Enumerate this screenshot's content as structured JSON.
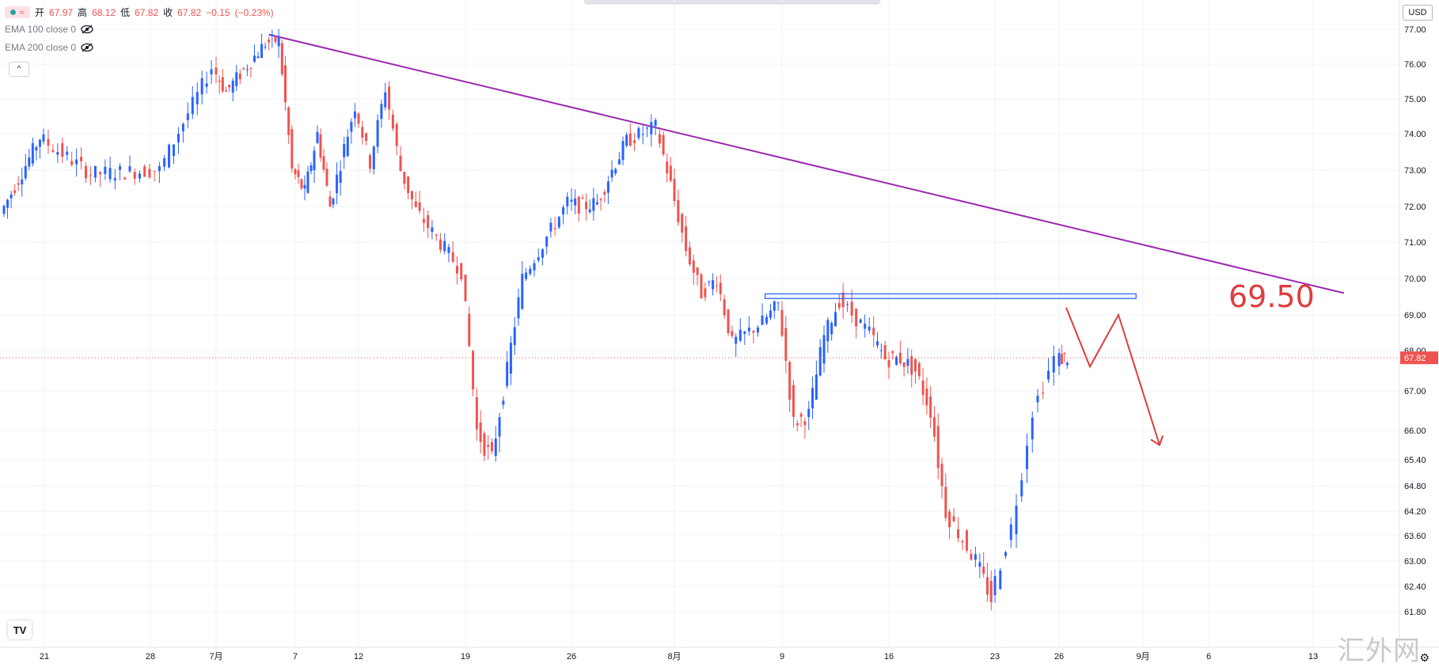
{
  "legend": {
    "ohlc": {
      "open_label": "开",
      "open": "67.97",
      "high_label": "高",
      "high": "68.12",
      "low_label": "低",
      "low": "67.82",
      "close_label": "收",
      "close": "67.82",
      "change": "−0.15",
      "change_pct": "(−0.23%)"
    },
    "indicators": [
      {
        "label": "EMA 100 close 0"
      },
      {
        "label": "EMA 200 close 0"
      }
    ],
    "badge_symbol": "≈",
    "collapse_symbol": "^"
  },
  "currency_button": "USD",
  "watermark": "汇外网",
  "annotation_label": "69.50",
  "colors": {
    "up": "#2962ff",
    "down": "#ef5350",
    "trendline": "#9c27b0",
    "zone": "#2962ff",
    "arrow": "#e03c3c",
    "price_tag": "#ef5350",
    "grid": "#f0f3fa"
  },
  "chart_data": {
    "type": "candlestick",
    "title": "",
    "ylim": [
      61.5,
      77.2
    ],
    "y_ticks": [
      "77.00",
      "76.00",
      "75.00",
      "74.00",
      "73.00",
      "72.00",
      "71.00",
      "70.00",
      "69.00",
      "68.00",
      "67.00",
      "66.00",
      "65.40",
      "64.80",
      "64.20",
      "63.60",
      "63.00",
      "62.40",
      "61.80"
    ],
    "x_tick_labels": [
      "21",
      "28",
      "7月",
      "7",
      "12",
      "19",
      "26",
      "8月",
      "9",
      "16",
      "23",
      "26",
      "9月",
      "6",
      "13"
    ],
    "last_price": "67.82",
    "resistance_zone": [
      69.45,
      69.58
    ],
    "resistance_label": "69.50",
    "trendline": {
      "start": {
        "date": "7月5",
        "price": 76.85
      },
      "end": {
        "date": "9月15",
        "price": 69.6
      }
    },
    "projection_path": [
      [
        68.5,
        67.0
      ],
      [
        67.5,
        68.1
      ],
      [
        65.6,
        65.7
      ]
    ],
    "anchors": [
      [
        "6月18",
        71.8
      ],
      [
        "6月21",
        73.9
      ],
      [
        "6月24",
        72.9
      ],
      [
        "6月28",
        73.0
      ],
      [
        "7月1",
        75.9
      ],
      [
        "7月2",
        75.2
      ],
      [
        "7月5",
        76.6
      ],
      [
        "7月6",
        76.7
      ],
      [
        "7月7",
        73.0
      ],
      [
        "7月8",
        72.4
      ],
      [
        "7月9",
        74.0
      ],
      [
        "7月10",
        72.0
      ],
      [
        "7月12",
        74.8
      ],
      [
        "7月13",
        73.2
      ],
      [
        "7月14",
        75.3
      ],
      [
        "7月15",
        73.0
      ],
      [
        "7月16",
        71.9
      ],
      [
        "7月19",
        70.2
      ],
      [
        "7月20",
        66.0
      ],
      [
        "7月21",
        65.4
      ],
      [
        "7月22",
        67.5
      ],
      [
        "7月23",
        70.0
      ],
      [
        "7月26",
        72.1
      ],
      [
        "7月27",
        72.0
      ],
      [
        "7月28",
        72.1
      ],
      [
        "7月29",
        73.0
      ],
      [
        "7月30",
        73.8
      ],
      [
        "8月1",
        74.2
      ],
      [
        "8月2",
        72.6
      ],
      [
        "8月3",
        70.8
      ],
      [
        "8月4",
        69.6
      ],
      [
        "8月5",
        70.0
      ],
      [
        "8月6",
        68.2
      ],
      [
        "8月8",
        68.8
      ],
      [
        "8月9",
        69.3
      ],
      [
        "8月10",
        66.2
      ],
      [
        "8月11",
        66.4
      ],
      [
        "8月12",
        68.4
      ],
      [
        "8月13",
        69.4
      ],
      [
        "8月15",
        68.5
      ],
      [
        "8月16",
        67.8
      ],
      [
        "8月17",
        67.8
      ],
      [
        "8月18",
        67.5
      ],
      [
        "8月19",
        66.5
      ],
      [
        "8月20",
        64.2
      ],
      [
        "8月22",
        63.0
      ],
      [
        "8月23",
        62.1
      ],
      [
        "8月24",
        63.8
      ],
      [
        "8月25",
        66.5
      ],
      [
        "8月26",
        67.8
      ],
      [
        "8月27",
        67.82
      ]
    ]
  }
}
